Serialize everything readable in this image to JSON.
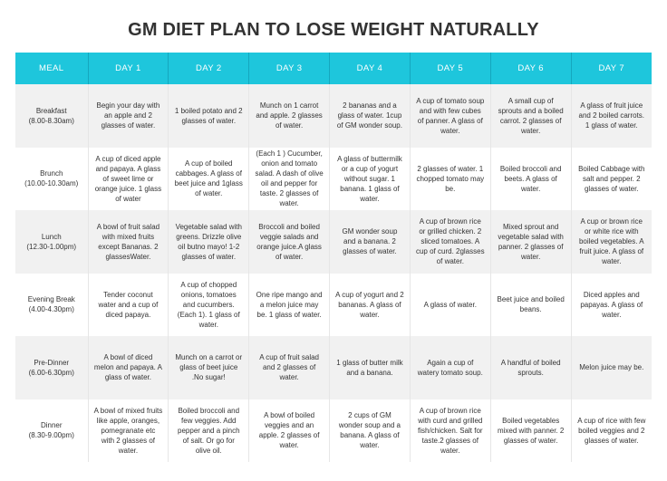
{
  "title": "GM DIET PLAN TO LOSE WEIGHT NATURALLY",
  "colors": {
    "header_bg": "#1ec6dc",
    "header_text": "#ffffff",
    "row_alt": "#f1f1f1"
  },
  "headers": [
    "MEAL",
    "DAY 1",
    "DAY 2",
    "DAY 3",
    "DAY 4",
    "DAY 5",
    "DAY 6",
    "DAY 7"
  ],
  "rows": [
    {
      "meal": "Breakfast",
      "time": "(8.00-8.30am)",
      "days": [
        "Begin your day with an apple and 2 glasses of water.",
        "1 boiled potato and 2 glasses of water.",
        "Munch on 1 carrot and apple. 2 glasses of water.",
        "2 bananas and a glass of water. 1cup of GM wonder soup.",
        "A cup of tomato soup and with few cubes of panner. A glass of water.",
        "A small cup of sprouts and a boiled carrot. 2 glasses of water.",
        "A glass of fruit juice and 2 boiled carrots. 1 glass of water."
      ]
    },
    {
      "meal": "Brunch",
      "time": "(10.00-10.30am)",
      "days": [
        "A cup of diced apple and papaya. A glass of sweet lime or orange juice. 1 glass of water",
        "A cup of boiled cabbages. A glass of beet juice and 1glass of water.",
        "(Each 1 ) Cucumber, onion and tomato salad. A dash of olive oil and pepper for taste. 2 glasses of water.",
        "A glass of buttermilk or a cup of yogurt without sugar. 1 banana. 1 glass of water.",
        "2 glasses of water. 1 chopped tomato may be.",
        "Boiled broccoli and beets. A glass of water.",
        "Boiled Cabbage with salt and pepper. 2 glasses of water."
      ]
    },
    {
      "meal": "Lunch",
      "time": "(12.30-1.00pm)",
      "days": [
        "A bowl of fruit salad with mixed fruits except Bananas. 2 glassesWater.",
        "Vegetable salad with greens. Drizzle olive oil butno mayo! 1-2 glasses of water.",
        "Broccoli and boiled veggie salads and orange juice.A glass of water.",
        "GM wonder soup and a banana. 2 glasses of water.",
        "A cup of brown rice or grilled chicken. 2 sliced tomatoes. A cup of curd. 2glasses of water.",
        "Mixed sprout and vegetable salad with panner. 2 glasses of water.",
        "A cup or brown rice or white rice with boiled vegetables. A fruit juice. A glass of water."
      ]
    },
    {
      "meal": "Evening Break",
      "time": "(4.00-4.30pm)",
      "days": [
        "Tender coconut water and a cup of diced papaya.",
        "A cup of chopped onions, tomatoes and cucumbers. (Each 1). 1 glass of water.",
        "One ripe mango and a melon juice may be. 1 glass of water.",
        "A cup of yogurt and 2 bananas. A glass of water.",
        "A glass of water.",
        "Beet juice and boiled beans.",
        "Diced apples and papayas. A glass of water."
      ]
    },
    {
      "meal": "Pre-Dinner",
      "time": "(6.00-6.30pm)",
      "days": [
        "A bowl of diced melon and papaya. A glass of water.",
        "Munch on a carrot or glass of beet juice .No sugar!",
        "A cup of fruit salad and 2 glasses of water.",
        "1 glass of butter milk and a banana.",
        "Again a cup of watery tomato soup.",
        "A handful of boiled sprouts.",
        "Melon juice may be."
      ]
    },
    {
      "meal": "Dinner",
      "time": "(8.30-9.00pm)",
      "days": [
        "A bowl of mixed fruits like apple, oranges, pomegranate etc with 2 glasses of water.",
        "Boiled broccoli and few veggies. Add pepper and a pinch of salt. Or go for olive oil.",
        "A bowl of boiled veggies and an apple. 2 glasses of water.",
        "2 cups of GM wonder soup and a banana. A glass of water.",
        "A cup of brown rice with curd and grilled fish/chicken. Salt for taste.2 glasses of water.",
        "Boiled vegetables mixed with panner. 2 glasses of water.",
        "A cup of rice with few boiled veggies and 2 glasses of water."
      ]
    }
  ]
}
